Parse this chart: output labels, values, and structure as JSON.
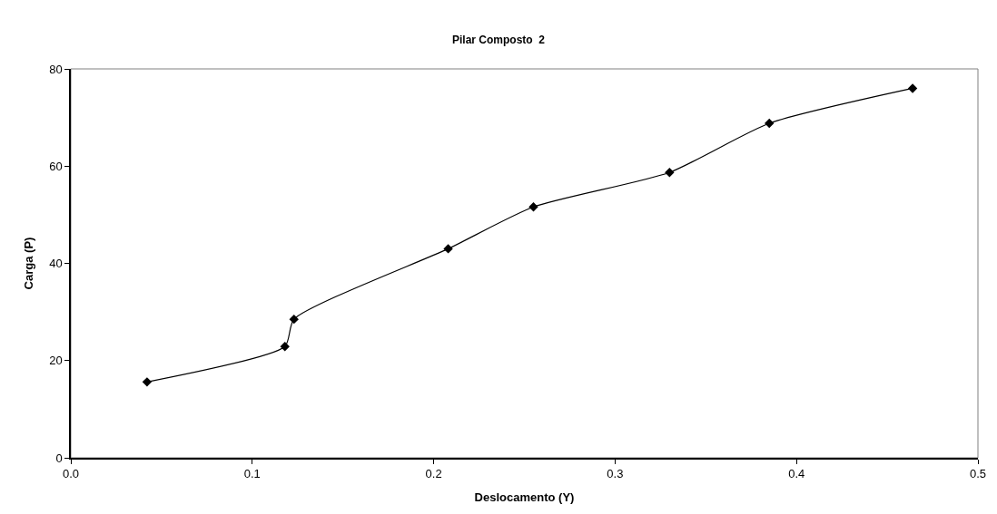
{
  "chart_data": {
    "type": "line",
    "title": "Pilar Composto  2",
    "xlabel": "Deslocamento (Y)",
    "ylabel": "Carga (P)",
    "x": [
      0.042,
      0.118,
      0.123,
      0.208,
      0.255,
      0.33,
      0.385,
      0.464
    ],
    "series": [
      {
        "color": "#000000",
        "values": [
          15.6,
          22.9,
          28.5,
          43.0,
          51.6,
          58.7,
          68.8,
          76.0
        ]
      }
    ],
    "xlim": [
      0,
      0.5
    ],
    "xticks": [
      {
        "value": 0,
        "label": "0.0"
      },
      0.1,
      0.2,
      0.3,
      0.4,
      0.5
    ],
    "ylim": [
      0,
      80
    ],
    "yticks": [
      0,
      20,
      40,
      60,
      80
    ],
    "grid": false,
    "marker": "diamond",
    "line_style": "solid"
  }
}
